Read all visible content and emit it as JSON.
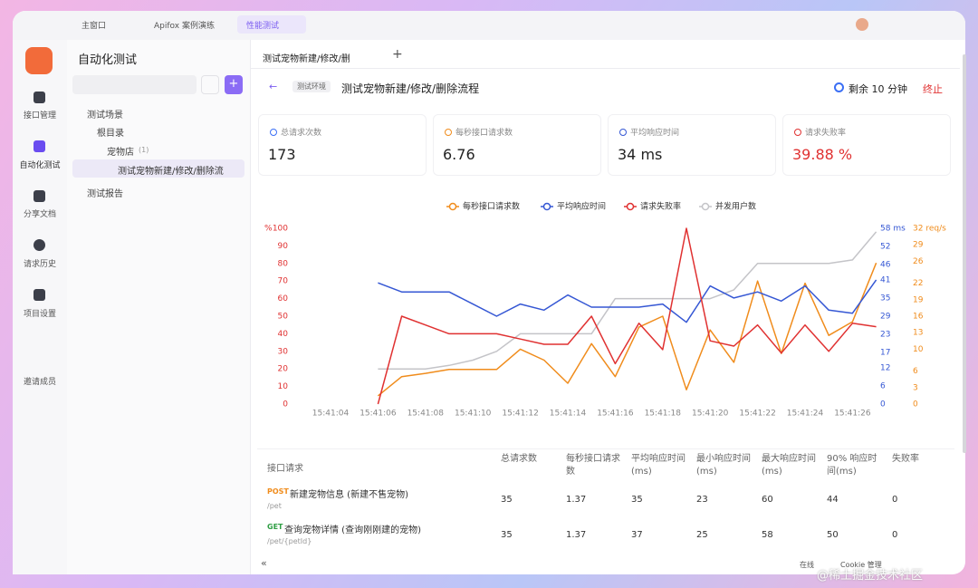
{
  "tabs": [
    "主窗口",
    "Apifox 案例演练",
    "性能测试"
  ],
  "sidebar": [
    "接口管理",
    "自动化测试",
    "分享文档",
    "请求历史",
    "项目设置",
    "邀请成员"
  ],
  "panel": {
    "title": "自动化测试",
    "scenes": "测试场景",
    "root": "根目录",
    "folder": "宠物店",
    "folder_count": "(1)",
    "case": "测试宠物新建/修改/删除流",
    "reports": "测试报告"
  },
  "content": {
    "tab": "测试宠物新建/修改/删",
    "env": "测试环境",
    "title": "测试宠物新建/修改/删除流程",
    "remaining": "剩余 10 分钟",
    "stop": "终止",
    "stats": [
      {
        "label": "总请求次数",
        "value": "173"
      },
      {
        "label": "每秒接口请求数",
        "value": "6.76"
      },
      {
        "label": "平均响应时间",
        "value": "34 ms"
      },
      {
        "label": "请求失败率",
        "value": "39.88 %"
      }
    ]
  },
  "chart_data": {
    "type": "line",
    "categories": [
      "15:41:04",
      null,
      "15:41:06",
      null,
      "15:41:08",
      null,
      "15:41:10",
      null,
      "15:41:12",
      null,
      "15:41:14",
      null,
      "15:41:16",
      null,
      "15:41:18",
      null,
      "15:41:20",
      null,
      "15:41:22",
      null,
      "15:41:24",
      null,
      "15:41:26",
      null
    ],
    "series": [
      {
        "name": "每秒接口请求数",
        "color": "#f08c1c",
        "axis": "y3",
        "values": [
          null,
          null,
          1.5,
          5,
          5.6,
          6.3,
          6.3,
          6.3,
          10,
          8,
          3.8,
          11,
          5,
          14,
          16,
          2.6,
          13.5,
          7.6,
          22.4,
          9.2,
          22,
          12.5,
          15,
          25.7
        ]
      },
      {
        "name": "平均响应时间",
        "color": "#3557d4",
        "axis": "y2",
        "values": [
          null,
          null,
          40,
          37,
          37,
          37,
          33,
          29,
          33,
          31,
          36,
          32,
          32,
          32,
          33,
          27,
          39,
          35,
          37,
          34,
          39,
          31,
          30,
          41
        ]
      },
      {
        "name": "请求失败率",
        "color": "#e03131",
        "axis": "y",
        "values": [
          null,
          null,
          0,
          50,
          45,
          40,
          40,
          40,
          37,
          34,
          34,
          50,
          23,
          46,
          31,
          100,
          36,
          33,
          45,
          29,
          45,
          30,
          46,
          44
        ]
      },
      {
        "name": "并发用户数",
        "color": "#c4c4c8",
        "axis": "y",
        "values": [
          null,
          null,
          20,
          20,
          20,
          22,
          25,
          30,
          40,
          40,
          40,
          40,
          60,
          60,
          60,
          60,
          60,
          65,
          80,
          80,
          80,
          80,
          82,
          98
        ]
      }
    ],
    "y_unit": "%",
    "ylim": [
      0,
      100
    ],
    "yticks": [
      0,
      10,
      20,
      30,
      40,
      50,
      60,
      70,
      80,
      90,
      100
    ],
    "y2lim": [
      0,
      58
    ],
    "y2ticks": [
      0,
      6,
      12,
      17,
      23,
      29,
      35,
      41,
      46,
      52,
      {
        "value": 58,
        "label": "58 ms"
      }
    ],
    "y3lim": [
      0,
      32
    ],
    "y3ticks": [
      0,
      3,
      6,
      10,
      13,
      16,
      19,
      22,
      26,
      29,
      {
        "value": 32,
        "label": "32 req/s"
      }
    ],
    "grid": false
  },
  "table": {
    "headers": [
      "接口请求",
      "总请求数",
      "每秒接口请求数",
      "平均响应时间(ms)",
      "最小响应时间(ms)",
      "最大响应时间(ms)",
      "90% 响应时间(ms)",
      "失败率"
    ],
    "rows": [
      {
        "method": "POST",
        "name": "新建宠物信息 (新建不售宠物)",
        "path": "/pet",
        "cells": [
          "35",
          "1.37",
          "35",
          "23",
          "60",
          "44",
          "0"
        ]
      },
      {
        "method": "GET",
        "name": "查询宠物详情 (查询刚刚建的宠物)",
        "path": "/pet/{petId}",
        "cells": [
          "35",
          "1.37",
          "37",
          "25",
          "58",
          "50",
          "0"
        ]
      }
    ]
  },
  "footer": {
    "online": "在线",
    "cookie": "Cookie 管理",
    "watermark": "@稀土掘金技术社区"
  }
}
